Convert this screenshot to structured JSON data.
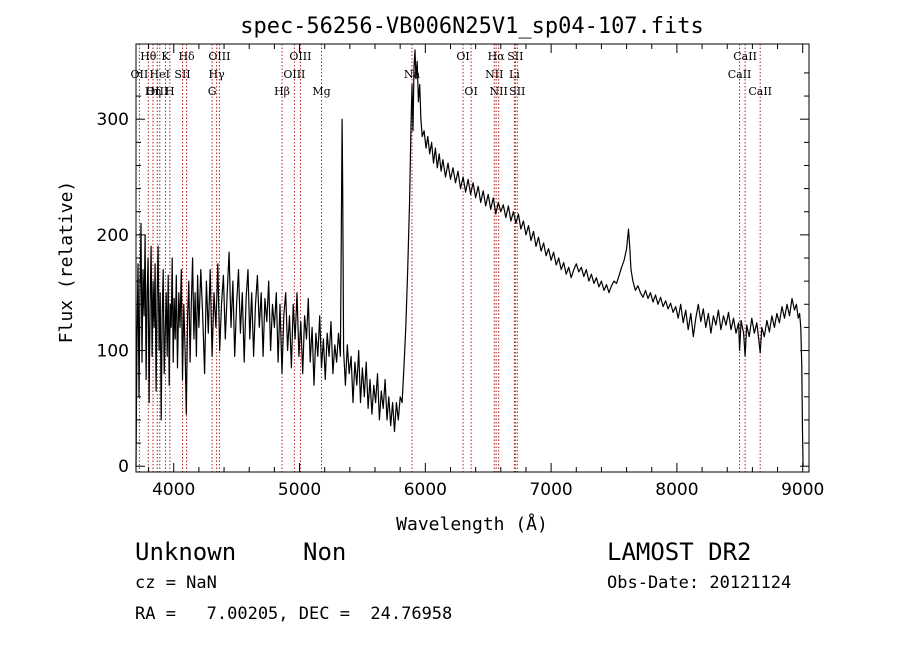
{
  "chart_data": {
    "type": "line",
    "title": "spec-56256-VB006N25V1_sp04-107.fits",
    "xlabel": "Wavelength (Å)",
    "ylabel": "Flux (relative)",
    "xlim": [
      3700,
      9050
    ],
    "ylim": [
      -5,
      365
    ],
    "xticks": [
      4000,
      5000,
      6000,
      7000,
      8000,
      9000
    ],
    "yticks": [
      0,
      100,
      200,
      300
    ],
    "line_color": "#000000",
    "marker_color": "#b22222",
    "spectral_lines": [
      {
        "name": "Hθ",
        "x": 3798,
        "row": 0
      },
      {
        "name": "OII",
        "x": 3727,
        "row": 1
      },
      {
        "name": "OIII",
        "x": 3869,
        "row": 2
      },
      {
        "name": "K",
        "x": 3934,
        "row": 0
      },
      {
        "name": "HeI",
        "x": 3889,
        "row": 1
      },
      {
        "name": "Hη",
        "x": 3835,
        "row": 2
      },
      {
        "name": "SII",
        "x": 4070,
        "row": 1
      },
      {
        "name": "H",
        "x": 3969,
        "row": 2
      },
      {
        "name": "Hδ",
        "x": 4102,
        "row": 0
      },
      {
        "name": "OIII",
        "x": 4363,
        "row": 0
      },
      {
        "name": "Hγ",
        "x": 4341,
        "row": 1
      },
      {
        "name": "G",
        "x": 4305,
        "row": 2
      },
      {
        "name": "Hβ",
        "x": 4861,
        "row": 2
      },
      {
        "name": "OIII",
        "x": 5007,
        "row": 0
      },
      {
        "name": "OIII",
        "x": 4959,
        "row": 1
      },
      {
        "name": "Mg",
        "x": 5175,
        "row": 2
      },
      {
        "name": "Na",
        "x": 5894,
        "row": 1
      },
      {
        "name": "OI",
        "x": 6300,
        "row": 0
      },
      {
        "name": "OI",
        "x": 6364,
        "row": 2
      },
      {
        "name": "Hα",
        "x": 6563,
        "row": 0
      },
      {
        "name": "NII",
        "x": 6548,
        "row": 1
      },
      {
        "name": "NII",
        "x": 6583,
        "row": 2
      },
      {
        "name": "SII",
        "x": 6716,
        "row": 0
      },
      {
        "name": "Li",
        "x": 6708,
        "row": 1
      },
      {
        "name": "SII",
        "x": 6731,
        "row": 2
      },
      {
        "name": "CaII",
        "x": 8542,
        "row": 0
      },
      {
        "name": "CaII",
        "x": 8498,
        "row": 1
      },
      {
        "name": "CaII",
        "x": 8662,
        "row": 2
      }
    ],
    "spectrum": [
      [
        3700,
        0
      ],
      [
        3708,
        110
      ],
      [
        3716,
        175
      ],
      [
        3724,
        60
      ],
      [
        3732,
        150
      ],
      [
        3740,
        210
      ],
      [
        3748,
        90
      ],
      [
        3756,
        170
      ],
      [
        3764,
        130
      ],
      [
        3772,
        200
      ],
      [
        3780,
        75
      ],
      [
        3788,
        150
      ],
      [
        3796,
        180
      ],
      [
        3804,
        55
      ],
      [
        3812,
        140
      ],
      [
        3820,
        190
      ],
      [
        3828,
        95
      ],
      [
        3836,
        160
      ],
      [
        3844,
        120
      ],
      [
        3852,
        175
      ],
      [
        3860,
        65
      ],
      [
        3868,
        145
      ],
      [
        3876,
        190
      ],
      [
        3884,
        100
      ],
      [
        3892,
        150
      ],
      [
        3900,
        40
      ],
      [
        3908,
        130
      ],
      [
        3916,
        170
      ],
      [
        3924,
        80
      ],
      [
        3932,
        115
      ],
      [
        3940,
        150
      ],
      [
        3948,
        95
      ],
      [
        3956,
        165
      ],
      [
        3964,
        70
      ],
      [
        3972,
        140
      ],
      [
        3980,
        120
      ],
      [
        3988,
        180
      ],
      [
        3996,
        90
      ],
      [
        4004,
        145
      ],
      [
        4012,
        110
      ],
      [
        4020,
        165
      ],
      [
        4030,
        85
      ],
      [
        4040,
        150
      ],
      [
        4050,
        120
      ],
      [
        4060,
        170
      ],
      [
        4070,
        75
      ],
      [
        4080,
        140
      ],
      [
        4090,
        100
      ],
      [
        4100,
        45
      ],
      [
        4110,
        130
      ],
      [
        4120,
        160
      ],
      [
        4130,
        90
      ],
      [
        4140,
        140
      ],
      [
        4150,
        180
      ],
      [
        4160,
        110
      ],
      [
        4170,
        150
      ],
      [
        4180,
        95
      ],
      [
        4190,
        165
      ],
      [
        4200,
        120
      ],
      [
        4215,
        170
      ],
      [
        4230,
        130
      ],
      [
        4245,
        80
      ],
      [
        4260,
        160
      ],
      [
        4275,
        115
      ],
      [
        4290,
        170
      ],
      [
        4305,
        95
      ],
      [
        4320,
        150
      ],
      [
        4335,
        120
      ],
      [
        4350,
        175
      ],
      [
        4365,
        100
      ],
      [
        4380,
        140
      ],
      [
        4395,
        165
      ],
      [
        4410,
        110
      ],
      [
        4425,
        150
      ],
      [
        4440,
        185
      ],
      [
        4455,
        120
      ],
      [
        4470,
        160
      ],
      [
        4485,
        95
      ],
      [
        4500,
        140
      ],
      [
        4515,
        170
      ],
      [
        4530,
        115
      ],
      [
        4545,
        150
      ],
      [
        4560,
        90
      ],
      [
        4575,
        145
      ],
      [
        4590,
        170
      ],
      [
        4605,
        110
      ],
      [
        4620,
        150
      ],
      [
        4635,
        95
      ],
      [
        4650,
        140
      ],
      [
        4665,
        165
      ],
      [
        4680,
        120
      ],
      [
        4695,
        150
      ],
      [
        4710,
        95
      ],
      [
        4725,
        145
      ],
      [
        4740,
        125
      ],
      [
        4755,
        160
      ],
      [
        4770,
        100
      ],
      [
        4785,
        140
      ],
      [
        4800,
        120
      ],
      [
        4815,
        150
      ],
      [
        4830,
        90
      ],
      [
        4845,
        140
      ],
      [
        4861,
        80
      ],
      [
        4875,
        130
      ],
      [
        4890,
        150
      ],
      [
        4905,
        100
      ],
      [
        4920,
        130
      ],
      [
        4935,
        85
      ],
      [
        4950,
        140
      ],
      [
        4965,
        110
      ],
      [
        4980,
        150
      ],
      [
        4995,
        95
      ],
      [
        5010,
        125
      ],
      [
        5025,
        80
      ],
      [
        5040,
        130
      ],
      [
        5055,
        110
      ],
      [
        5070,
        145
      ],
      [
        5085,
        90
      ],
      [
        5100,
        120
      ],
      [
        5115,
        70
      ],
      [
        5130,
        115
      ],
      [
        5145,
        95
      ],
      [
        5160,
        130
      ],
      [
        5175,
        85
      ],
      [
        5190,
        110
      ],
      [
        5205,
        75
      ],
      [
        5220,
        115
      ],
      [
        5235,
        95
      ],
      [
        5250,
        125
      ],
      [
        5265,
        80
      ],
      [
        5280,
        105
      ],
      [
        5295,
        90
      ],
      [
        5310,
        115
      ],
      [
        5325,
        95
      ],
      [
        5332,
        200
      ],
      [
        5338,
        300
      ],
      [
        5343,
        240
      ],
      [
        5350,
        100
      ],
      [
        5365,
        70
      ],
      [
        5380,
        105
      ],
      [
        5395,
        80
      ],
      [
        5410,
        95
      ],
      [
        5425,
        55
      ],
      [
        5440,
        90
      ],
      [
        5455,
        70
      ],
      [
        5470,
        100
      ],
      [
        5485,
        55
      ],
      [
        5500,
        85
      ],
      [
        5515,
        60
      ],
      [
        5530,
        90
      ],
      [
        5545,
        50
      ],
      [
        5560,
        75
      ],
      [
        5575,
        45
      ],
      [
        5590,
        70
      ],
      [
        5605,
        55
      ],
      [
        5620,
        80
      ],
      [
        5635,
        40
      ],
      [
        5650,
        65
      ],
      [
        5665,
        50
      ],
      [
        5680,
        75
      ],
      [
        5695,
        40
      ],
      [
        5710,
        60
      ],
      [
        5725,
        35
      ],
      [
        5740,
        55
      ],
      [
        5755,
        30
      ],
      [
        5770,
        55
      ],
      [
        5785,
        40
      ],
      [
        5800,
        60
      ],
      [
        5815,
        55
      ],
      [
        5830,
        85
      ],
      [
        5845,
        120
      ],
      [
        5860,
        170
      ],
      [
        5875,
        230
      ],
      [
        5885,
        290
      ],
      [
        5894,
        330
      ],
      [
        5902,
        290
      ],
      [
        5910,
        345
      ],
      [
        5918,
        360
      ],
      [
        5926,
        335
      ],
      [
        5935,
        350
      ],
      [
        5945,
        315
      ],
      [
        5955,
        330
      ],
      [
        5965,
        300
      ],
      [
        5975,
        285
      ],
      [
        5990,
        290
      ],
      [
        6005,
        275
      ],
      [
        6020,
        285
      ],
      [
        6035,
        270
      ],
      [
        6050,
        280
      ],
      [
        6065,
        262
      ],
      [
        6080,
        275
      ],
      [
        6095,
        258
      ],
      [
        6110,
        270
      ],
      [
        6125,
        255
      ],
      [
        6140,
        265
      ],
      [
        6160,
        250
      ],
      [
        6180,
        262
      ],
      [
        6200,
        248
      ],
      [
        6220,
        258
      ],
      [
        6240,
        245
      ],
      [
        6260,
        255
      ],
      [
        6280,
        240
      ],
      [
        6300,
        250
      ],
      [
        6320,
        237
      ],
      [
        6340,
        248
      ],
      [
        6360,
        235
      ],
      [
        6380,
        245
      ],
      [
        6400,
        232
      ],
      [
        6420,
        242
      ],
      [
        6440,
        228
      ],
      [
        6460,
        238
      ],
      [
        6480,
        225
      ],
      [
        6500,
        235
      ],
      [
        6520,
        222
      ],
      [
        6540,
        232
      ],
      [
        6560,
        218
      ],
      [
        6580,
        228
      ],
      [
        6600,
        220
      ],
      [
        6620,
        226
      ],
      [
        6640,
        215
      ],
      [
        6660,
        225
      ],
      [
        6680,
        212
      ],
      [
        6700,
        220
      ],
      [
        6720,
        210
      ],
      [
        6740,
        218
      ],
      [
        6760,
        205
      ],
      [
        6780,
        212
      ],
      [
        6800,
        200
      ],
      [
        6820,
        208
      ],
      [
        6840,
        195
      ],
      [
        6860,
        203
      ],
      [
        6880,
        190
      ],
      [
        6900,
        198
      ],
      [
        6920,
        186
      ],
      [
        6940,
        193
      ],
      [
        6960,
        182
      ],
      [
        6980,
        188
      ],
      [
        7000,
        178
      ],
      [
        7020,
        185
      ],
      [
        7040,
        174
      ],
      [
        7060,
        180
      ],
      [
        7080,
        170
      ],
      [
        7100,
        176
      ],
      [
        7120,
        166
      ],
      [
        7140,
        172
      ],
      [
        7160,
        163
      ],
      [
        7180,
        170
      ],
      [
        7200,
        175
      ],
      [
        7220,
        168
      ],
      [
        7240,
        172
      ],
      [
        7260,
        164
      ],
      [
        7280,
        170
      ],
      [
        7300,
        160
      ],
      [
        7320,
        166
      ],
      [
        7340,
        158
      ],
      [
        7360,
        163
      ],
      [
        7380,
        155
      ],
      [
        7400,
        160
      ],
      [
        7420,
        152
      ],
      [
        7440,
        157
      ],
      [
        7460,
        150
      ],
      [
        7480,
        156
      ],
      [
        7500,
        160
      ],
      [
        7520,
        158
      ],
      [
        7540,
        165
      ],
      [
        7560,
        172
      ],
      [
        7580,
        178
      ],
      [
        7600,
        188
      ],
      [
        7615,
        205
      ],
      [
        7625,
        190
      ],
      [
        7635,
        170
      ],
      [
        7650,
        160
      ],
      [
        7670,
        152
      ],
      [
        7690,
        156
      ],
      [
        7710,
        150
      ],
      [
        7730,
        146
      ],
      [
        7750,
        152
      ],
      [
        7770,
        145
      ],
      [
        7790,
        150
      ],
      [
        7810,
        142
      ],
      [
        7830,
        148
      ],
      [
        7850,
        140
      ],
      [
        7870,
        146
      ],
      [
        7890,
        138
      ],
      [
        7910,
        143
      ],
      [
        7930,
        136
      ],
      [
        7950,
        141
      ],
      [
        7970,
        133
      ],
      [
        7990,
        138
      ],
      [
        8010,
        128
      ],
      [
        8030,
        140
      ],
      [
        8050,
        124
      ],
      [
        8070,
        135
      ],
      [
        8090,
        118
      ],
      [
        8110,
        132
      ],
      [
        8130,
        112
      ],
      [
        8150,
        128
      ],
      [
        8170,
        140
      ],
      [
        8190,
        125
      ],
      [
        8210,
        136
      ],
      [
        8230,
        120
      ],
      [
        8250,
        132
      ],
      [
        8270,
        115
      ],
      [
        8290,
        130
      ],
      [
        8310,
        122
      ],
      [
        8330,
        135
      ],
      [
        8350,
        118
      ],
      [
        8370,
        130
      ],
      [
        8390,
        122
      ],
      [
        8410,
        133
      ],
      [
        8430,
        118
      ],
      [
        8450,
        128
      ],
      [
        8470,
        115
      ],
      [
        8490,
        124
      ],
      [
        8498,
        100
      ],
      [
        8510,
        126
      ],
      [
        8530,
        115
      ],
      [
        8542,
        95
      ],
      [
        8555,
        122
      ],
      [
        8575,
        112
      ],
      [
        8595,
        128
      ],
      [
        8615,
        115
      ],
      [
        8635,
        124
      ],
      [
        8650,
        110
      ],
      [
        8662,
        98
      ],
      [
        8675,
        120
      ],
      [
        8695,
        112
      ],
      [
        8715,
        126
      ],
      [
        8735,
        116
      ],
      [
        8755,
        130
      ],
      [
        8775,
        120
      ],
      [
        8795,
        132
      ],
      [
        8815,
        124
      ],
      [
        8835,
        138
      ],
      [
        8855,
        128
      ],
      [
        8875,
        140
      ],
      [
        8895,
        130
      ],
      [
        8915,
        145
      ],
      [
        8935,
        135
      ],
      [
        8950,
        140
      ],
      [
        8965,
        128
      ],
      [
        8975,
        132
      ],
      [
        8985,
        120
      ],
      [
        8993,
        85
      ],
      [
        8998,
        30
      ],
      [
        9003,
        0
      ]
    ]
  },
  "info": {
    "object_class": "Unknown",
    "object_subclass": "Non",
    "survey": "LAMOST DR2",
    "cz": "cz = NaN",
    "obs_date": "Obs-Date: 20121124",
    "coords": "RA =   7.00205, DEC =  24.76958"
  }
}
